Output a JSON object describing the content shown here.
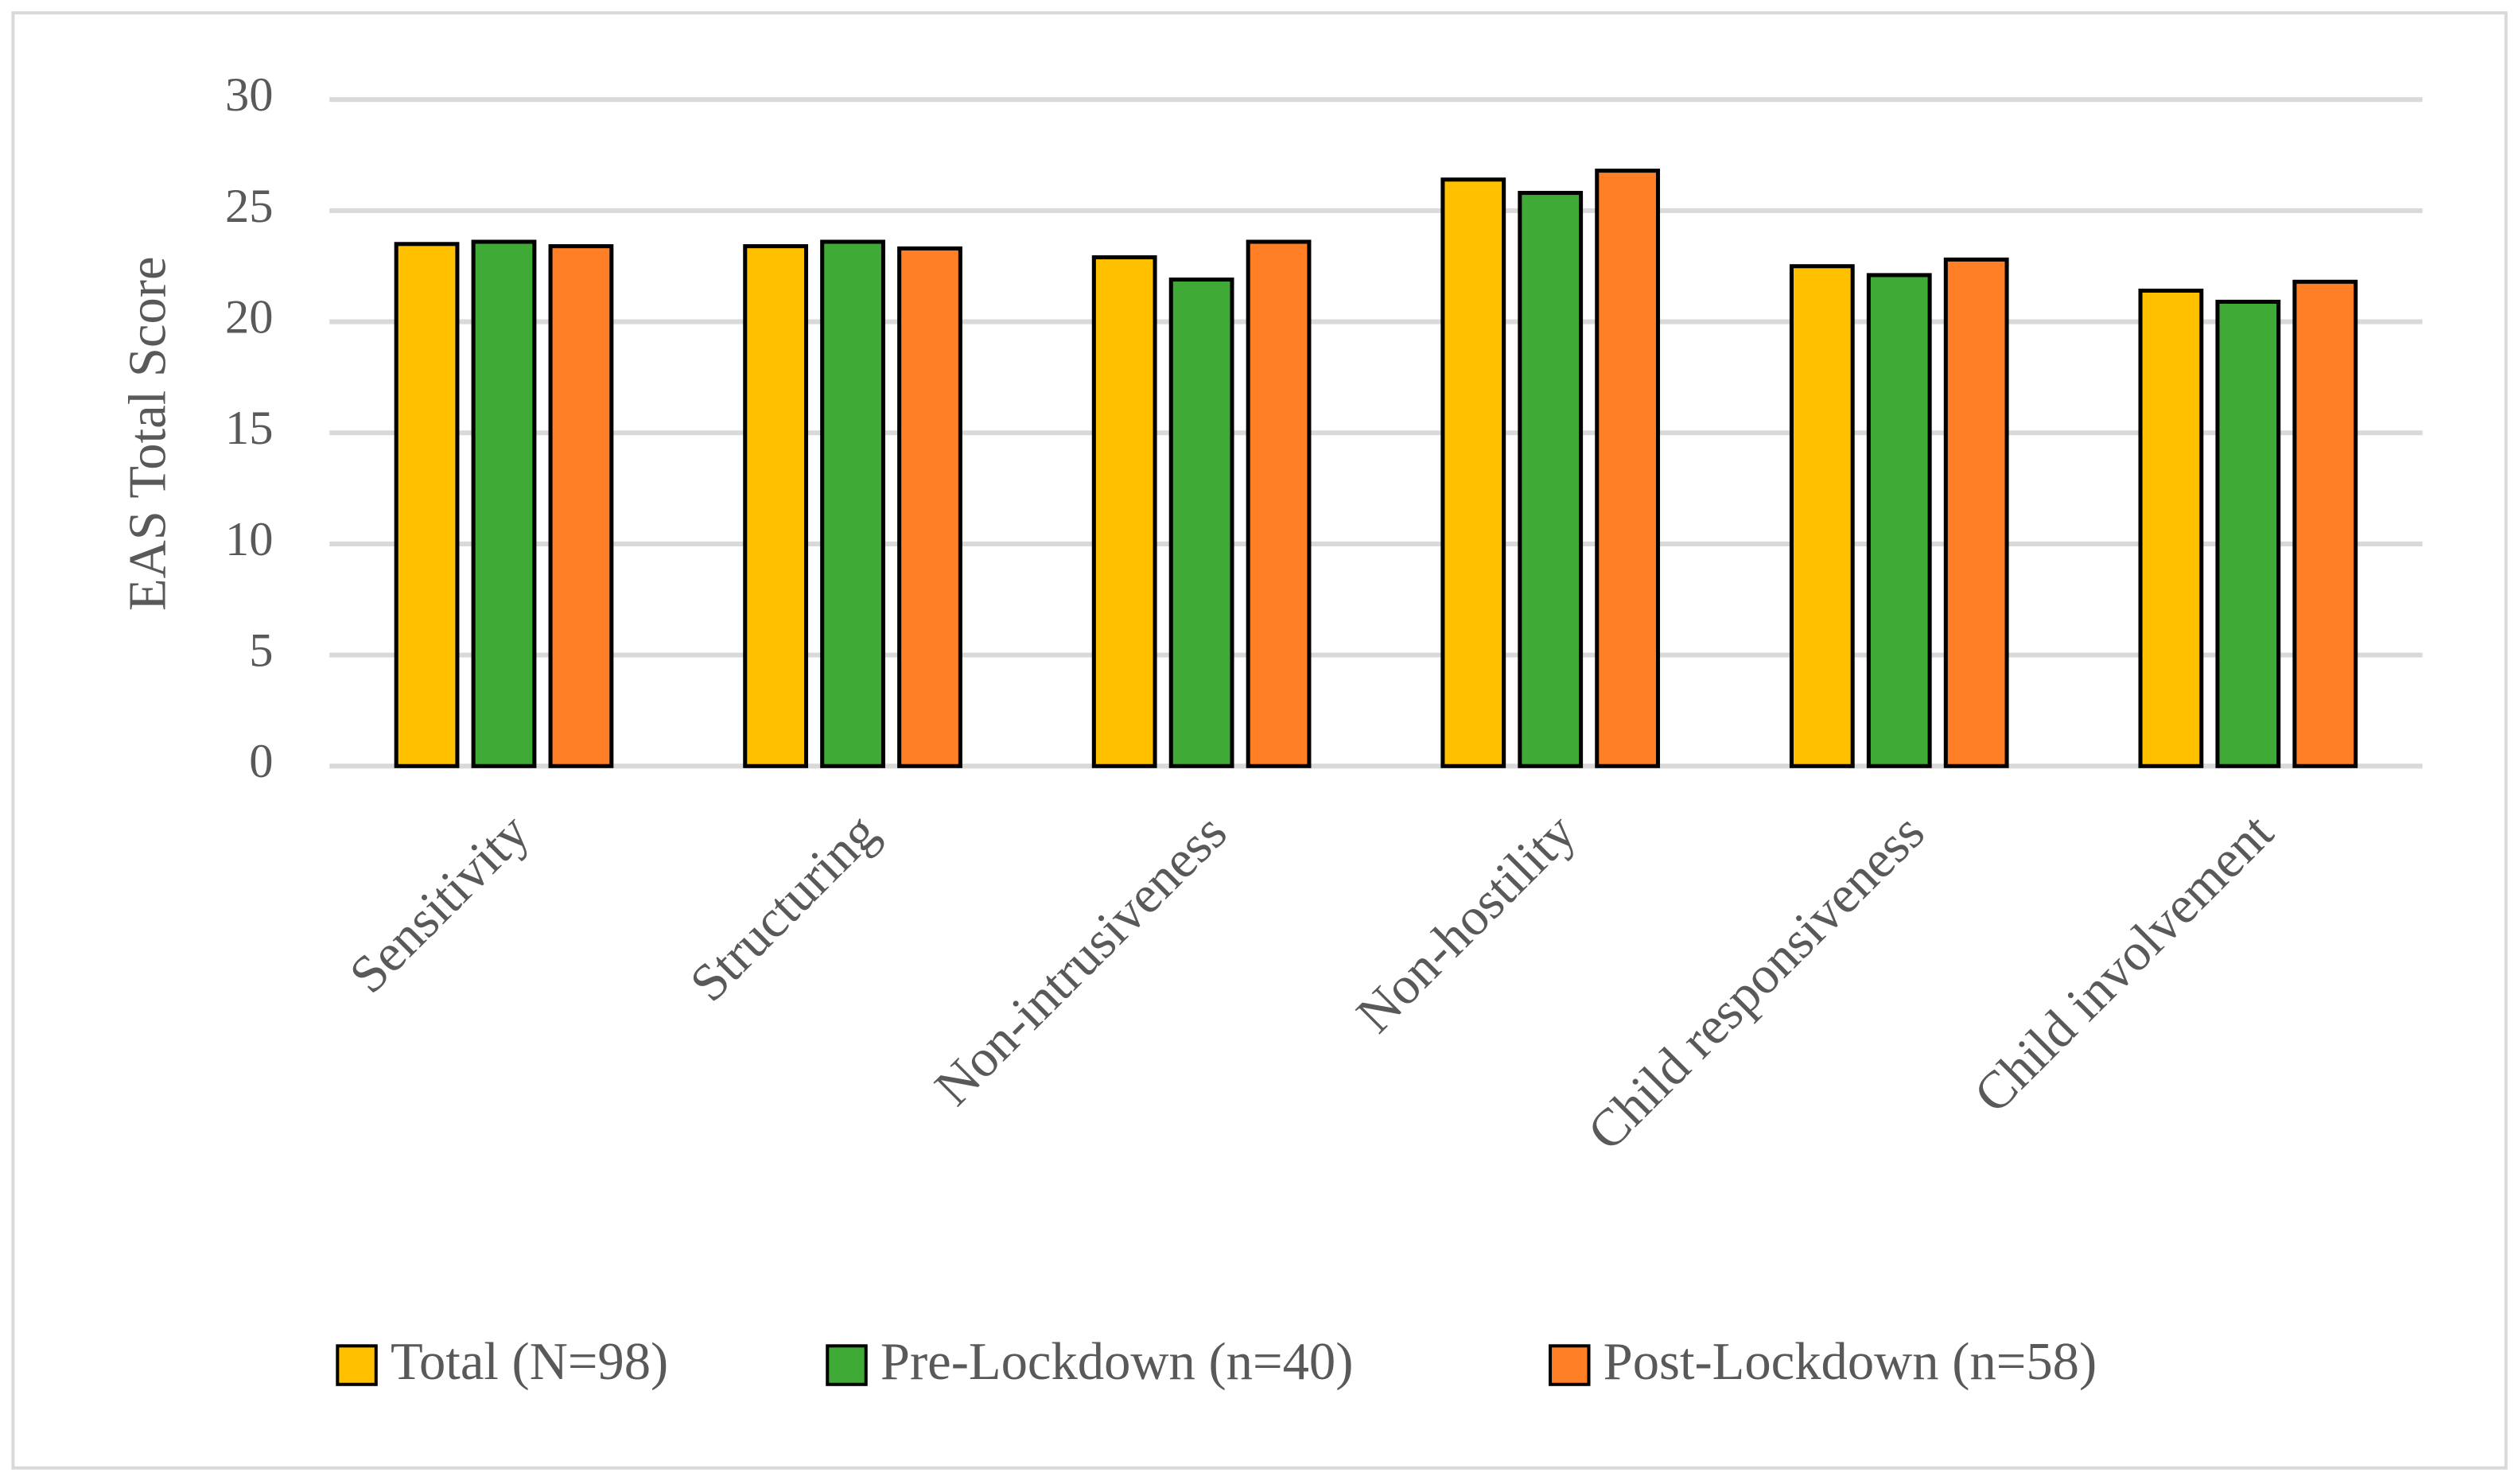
{
  "chart_data": {
    "type": "bar",
    "y_label": "EAS Total Score",
    "categories": [
      "Sensitivity",
      "Structuring",
      "Non-intrusiveness",
      "Non-hostility",
      "Child responsiveness",
      "Child involvement"
    ],
    "series": [
      {
        "name": "Total (N=98)",
        "color": "#ffc000",
        "values": [
          23.5,
          23.4,
          22.9,
          26.4,
          22.5,
          21.4
        ]
      },
      {
        "name": "Pre-Lockdown (n=40)",
        "color": "#3faa35",
        "values": [
          23.6,
          23.6,
          21.9,
          25.8,
          22.1,
          20.9
        ]
      },
      {
        "name": "Post-Lockdown (n=58)",
        "color": "#fe7f26",
        "values": [
          23.4,
          23.3,
          23.6,
          26.8,
          22.8,
          21.8
        ]
      }
    ],
    "ylim": [
      0,
      30
    ],
    "yticks": [
      0,
      5,
      10,
      15,
      20,
      25,
      30
    ],
    "grid": true
  }
}
